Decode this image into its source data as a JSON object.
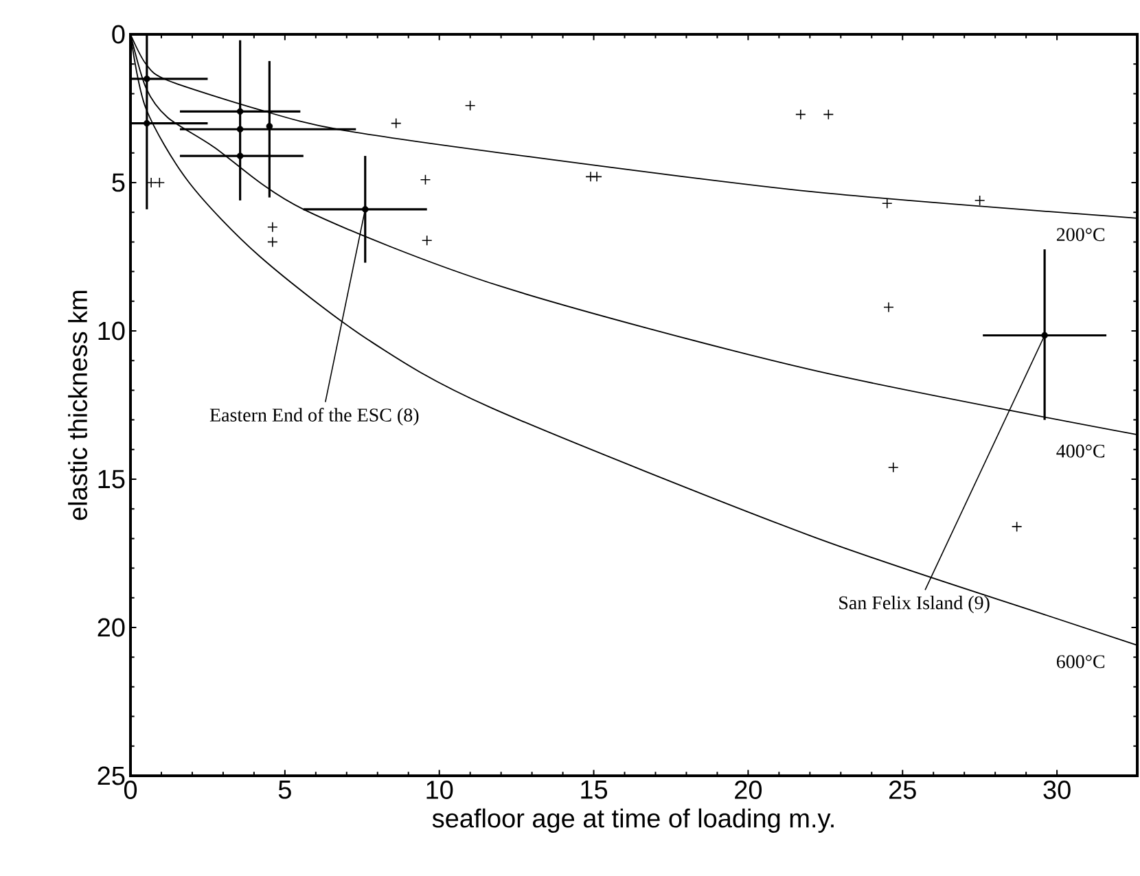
{
  "chart_data": {
    "type": "scatter",
    "xlabel": "seafloor age at time of loading m.y.",
    "ylabel": "elastic thickness km",
    "xlim": [
      0,
      32.6
    ],
    "ylim": [
      25,
      0
    ],
    "xticks": [
      0,
      5,
      10,
      15,
      20,
      25,
      30
    ],
    "yticks": [
      0,
      5,
      10,
      15,
      20,
      25
    ],
    "legend": "right",
    "annotations": [
      {
        "text": "Eastern End of the ESC (8)",
        "x": 7.6,
        "y": 5.9
      },
      {
        "text": "San Felix Island (9)",
        "x": 29.6,
        "y": 10.15
      }
    ],
    "series": [
      {
        "name": "200°C",
        "type": "line",
        "color": "#000000",
        "marker": "none",
        "line_style": "solid",
        "x": [
          0,
          0.5,
          1.2,
          4.2,
          6.7,
          12,
          22,
          32.6
        ],
        "values": [
          0,
          1.0,
          1.55,
          2.55,
          3.2,
          4.0,
          5.3,
          6.2
        ]
      },
      {
        "name": "400°C",
        "type": "line",
        "color": "#000000",
        "marker": "none",
        "line_style": "solid",
        "x": [
          0,
          0.5,
          1.2,
          2.7,
          5.6,
          12,
          22,
          32.6
        ],
        "values": [
          0,
          1.8,
          2.8,
          3.8,
          5.9,
          8.5,
          11.3,
          13.5
        ]
      },
      {
        "name": "600°C",
        "type": "line",
        "color": "#000000",
        "marker": "none",
        "line_style": "solid",
        "x": [
          0,
          0.5,
          1.9,
          4.2,
          7.7,
          11.7,
          22,
          29.7,
          32.6
        ],
        "values": [
          0,
          2.5,
          5.0,
          7.5,
          10.3,
          12.6,
          16.9,
          19.6,
          20.6
        ]
      },
      {
        "color": "#000000",
        "marker": "cross",
        "x": [
          0.67,
          0.94,
          4.6,
          4.6,
          8.6,
          9.55,
          9.6,
          11.0,
          21.7,
          22.6,
          14.9,
          15.1,
          24.5,
          27.5,
          24.55,
          24.7,
          28.7
        ],
        "values": [
          5.0,
          5.0,
          6.5,
          7.0,
          3.0,
          4.9,
          6.95,
          2.4,
          2.7,
          2.7,
          4.8,
          4.8,
          5.7,
          5.6,
          9.2,
          14.6,
          16.6
        ]
      },
      {
        "color": "#000000",
        "marker": "circle",
        "x": [
          0.53,
          0.53,
          3.55,
          3.55,
          3.55,
          4.5,
          7.6,
          29.6
        ],
        "values": [
          1.5,
          3.0,
          2.6,
          3.2,
          4.1,
          3.1,
          5.9,
          10.15
        ],
        "xerrors": [
          [
            0,
            2.5
          ],
          [
            0,
            2.5
          ],
          [
            1.6,
            5.5
          ],
          [
            1.6,
            7.3
          ],
          [
            1.6,
            5.6
          ],
          null,
          [
            5.6,
            9.6
          ],
          [
            27.6,
            31.6
          ]
        ],
        "errors": [
          [
            0,
            5.9
          ],
          null,
          [
            0.2,
            5.6
          ],
          null,
          null,
          [
            0.9,
            5.5
          ],
          [
            4.1,
            7.7
          ],
          [
            7.25,
            13.0
          ]
        ]
      }
    ]
  }
}
